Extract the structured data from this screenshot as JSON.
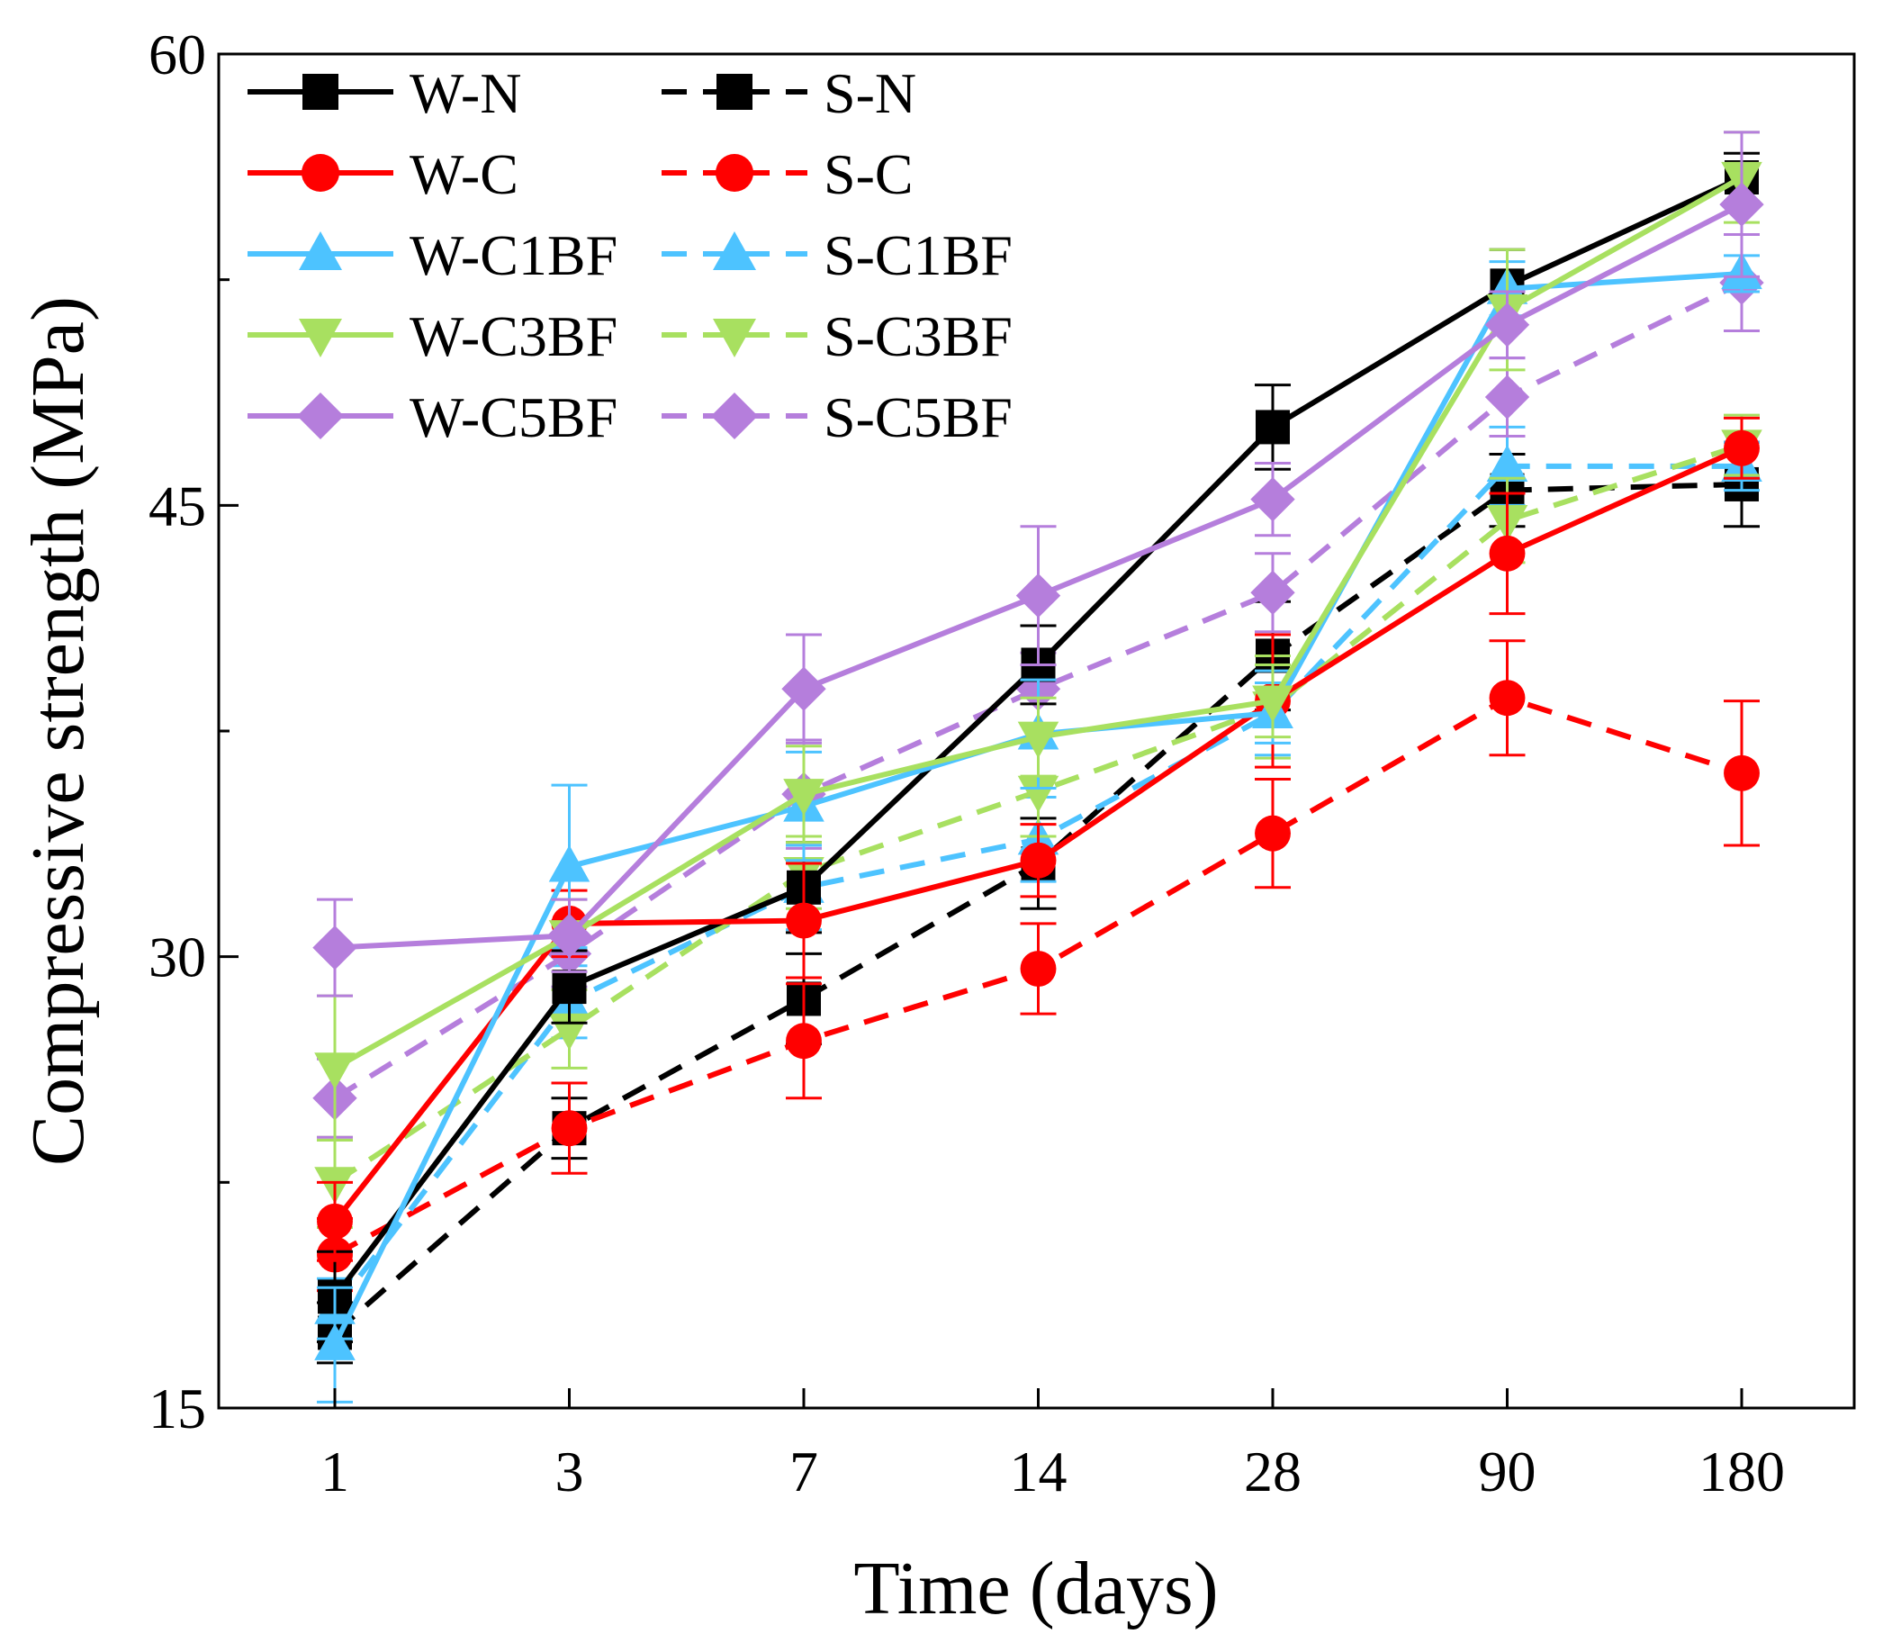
{
  "chart_data": {
    "type": "line",
    "title": "",
    "xlabel": "Time (days)",
    "ylabel": "Compressive strength (MPa)",
    "categories": [
      "1",
      "3",
      "7",
      "14",
      "28",
      "90",
      "180"
    ],
    "ylim": [
      15,
      60
    ],
    "yticks": [
      15,
      30,
      45,
      60
    ],
    "grid": false,
    "legend": "top-left",
    "series": [
      {
        "name": "W-N",
        "color": "#000000",
        "dash": false,
        "marker": "square",
        "values": [
          18.7,
          29.0,
          32.3,
          39.7,
          47.6,
          52.3,
          55.9
        ],
        "errors": [
          1.5,
          1.2,
          1.5,
          1.3,
          1.4,
          1.2,
          0.8
        ]
      },
      {
        "name": "W-C",
        "color": "#ff0000",
        "dash": false,
        "marker": "circle",
        "values": [
          21.2,
          31.1,
          31.2,
          33.2,
          38.5,
          43.4,
          46.9
        ],
        "errors": [
          1.3,
          1.1,
          1.9,
          1.2,
          2.2,
          2.0,
          1.0
        ]
      },
      {
        "name": "W-C1BF",
        "color": "#4dc3ff",
        "dash": false,
        "marker": "triangle-up",
        "values": [
          17.1,
          33.0,
          35.0,
          37.4,
          38.1,
          52.2,
          52.7
        ],
        "errors": [
          1.9,
          2.7,
          1.8,
          1.8,
          1.0,
          0.9,
          0.6
        ]
      },
      {
        "name": "W-C3BF",
        "color": "#a8e060",
        "dash": false,
        "marker": "triangle-down",
        "values": [
          26.3,
          30.7,
          35.4,
          37.3,
          38.5,
          51.5,
          55.9
        ],
        "errors": [
          2.4,
          1.2,
          1.6,
          1.3,
          1.2,
          2.0,
          1.5
        ]
      },
      {
        "name": "W-C5BF",
        "color": "#b57edc",
        "dash": false,
        "marker": "diamond",
        "values": [
          30.3,
          30.7,
          38.9,
          42.0,
          45.2,
          51.0,
          55.0
        ],
        "errors": [
          1.6,
          1.2,
          1.8,
          2.3,
          1.2,
          1.1,
          2.4
        ]
      },
      {
        "name": "S-N",
        "color": "#000000",
        "dash": true,
        "marker": "square",
        "values": [
          17.5,
          24.3,
          28.6,
          33.1,
          40.0,
          45.5,
          45.7
        ],
        "errors": [
          1.0,
          1.0,
          1.5,
          1.5,
          1.8,
          1.2,
          1.4
        ]
      },
      {
        "name": "S-C",
        "color": "#ff0000",
        "dash": true,
        "marker": "circle",
        "values": [
          20.1,
          24.3,
          27.2,
          29.6,
          34.1,
          38.6,
          36.1
        ],
        "errors": [
          1.2,
          1.5,
          1.9,
          1.5,
          1.8,
          1.9,
          2.4
        ]
      },
      {
        "name": "S-C1BF",
        "color": "#4dc3ff",
        "dash": true,
        "marker": "triangle-up",
        "values": [
          18.3,
          28.5,
          32.3,
          33.9,
          38.1,
          46.3,
          46.3
        ],
        "errors": [
          1.0,
          1.2,
          1.4,
          1.4,
          1.4,
          1.3,
          0.8
        ]
      },
      {
        "name": "S-C3BF",
        "color": "#a8e060",
        "dash": true,
        "marker": "triangle-down",
        "values": [
          22.5,
          27.6,
          32.8,
          35.5,
          38.3,
          44.5,
          47.0
        ],
        "errors": [
          1.5,
          1.3,
          1.2,
          1.5,
          1.7,
          1.4,
          1.0
        ]
      },
      {
        "name": "S-C5BF",
        "color": "#b57edc",
        "dash": true,
        "marker": "diamond",
        "values": [
          25.3,
          30.1,
          35.4,
          38.9,
          42.1,
          48.6,
          52.4
        ],
        "errors": [
          1.3,
          1.1,
          1.8,
          1.2,
          1.3,
          1.3,
          1.6
        ]
      }
    ]
  }
}
